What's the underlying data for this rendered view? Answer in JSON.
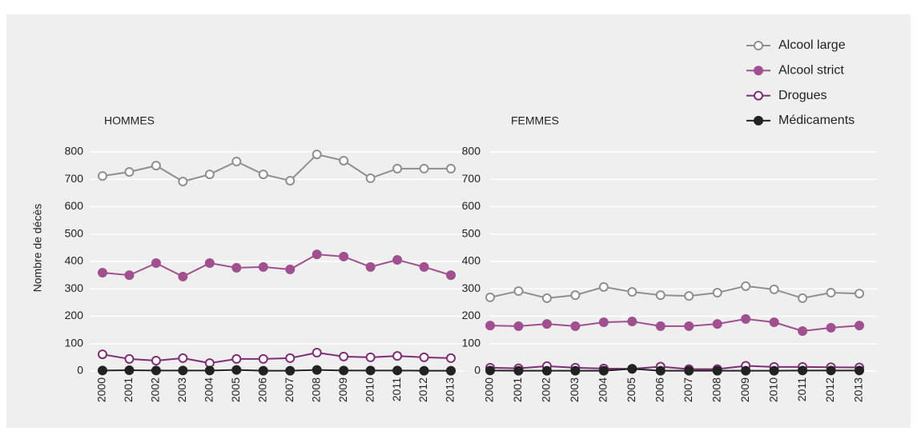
{
  "chart_data": [
    {
      "type": "line",
      "title": "HOMMES",
      "y_label": "Nombre de décès",
      "categories": [
        "2000",
        "2001",
        "2002",
        "2003",
        "2004",
        "2005",
        "2006",
        "2007",
        "2008",
        "2009",
        "2010",
        "2011",
        "2012",
        "2013"
      ],
      "ylim": [
        0,
        800
      ],
      "yticks": [
        0,
        100,
        200,
        300,
        400,
        500,
        600,
        700,
        800
      ],
      "grid": true,
      "legend": "upper right",
      "series": [
        {
          "name": "Alcool large",
          "color": "#8f8f8f",
          "filled": false,
          "values": [
            712,
            727,
            750,
            692,
            718,
            765,
            718,
            695,
            791,
            768,
            704,
            739,
            739,
            739
          ]
        },
        {
          "name": "Alcool strict",
          "color": "#a0508f",
          "filled": true,
          "values": [
            359,
            350,
            394,
            345,
            394,
            377,
            380,
            371,
            426,
            418,
            380,
            406,
            380,
            350
          ]
        },
        {
          "name": "Drogues",
          "color": "#7d2e74",
          "filled": false,
          "values": [
            61,
            44,
            38,
            47,
            29,
            44,
            44,
            47,
            67,
            53,
            50,
            55,
            50,
            47
          ]
        },
        {
          "name": "Médicaments",
          "color": "#222222",
          "filled": true,
          "values": [
            2,
            3,
            2,
            2,
            2,
            4,
            1,
            1,
            4,
            2,
            2,
            2,
            1,
            1
          ]
        }
      ]
    },
    {
      "type": "line",
      "title": "FEMMES",
      "categories": [
        "2000",
        "2001",
        "2002",
        "2003",
        "2004",
        "2005",
        "2006",
        "2007",
        "2008",
        "2009",
        "2010",
        "2011",
        "2012",
        "2013"
      ],
      "ylim": [
        0,
        800
      ],
      "yticks": [
        0,
        100,
        200,
        300,
        400,
        500,
        600,
        700,
        800
      ],
      "grid": true,
      "series": [
        {
          "name": "Alcool large",
          "color": "#8f8f8f",
          "filled": false,
          "values": [
            269,
            292,
            266,
            277,
            307,
            289,
            277,
            274,
            286,
            310,
            298,
            266,
            286,
            283
          ]
        },
        {
          "name": "Alcool strict",
          "color": "#a0508f",
          "filled": true,
          "values": [
            166,
            164,
            172,
            164,
            178,
            181,
            164,
            164,
            172,
            190,
            178,
            146,
            158,
            166
          ]
        },
        {
          "name": "Drogues",
          "color": "#7d2e74",
          "filled": false,
          "values": [
            12,
            10,
            18,
            12,
            9,
            8,
            16,
            7,
            7,
            19,
            15,
            15,
            14,
            13
          ]
        },
        {
          "name": "Médicaments",
          "color": "#222222",
          "filled": true,
          "values": [
            2,
            1,
            1,
            1,
            1,
            8,
            1,
            1,
            1,
            1,
            1,
            2,
            2,
            2
          ]
        }
      ]
    }
  ]
}
